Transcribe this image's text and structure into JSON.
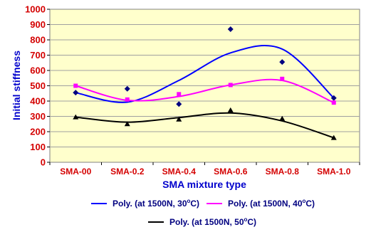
{
  "chart_data": {
    "type": "scatter",
    "xlabel": "SMA mixture type",
    "ylabel": "Initial stiffness",
    "categories": [
      "SMA-00",
      "SMA-0.2",
      "SMA-0.4",
      "SMA-0.6",
      "SMA-0.8",
      "SMA-1.0"
    ],
    "ylim": [
      0,
      1000
    ],
    "yticks": [
      0,
      100,
      200,
      300,
      400,
      500,
      600,
      700,
      800,
      900,
      1000
    ],
    "grid": true,
    "plot_background": "#ffffcc",
    "legend_position": "bottom",
    "series": [
      {
        "name": "Poly. (at 1500N, 30",
        "name_sup": "o",
        "name_tail": "C)",
        "color": "#0000ff",
        "marker": "diamond",
        "marker_color": "#000080",
        "values": [
          455,
          480,
          380,
          870,
          655,
          420
        ],
        "trend": [
          455,
          393,
          535,
          715,
          740,
          420
        ]
      },
      {
        "name": "Poly. (at 1500N, 40",
        "name_sup": "o",
        "name_tail": "C)",
        "color": "#ff00ff",
        "marker": "square",
        "marker_color": "#ff00ff",
        "values": [
          500,
          410,
          445,
          505,
          545,
          390
        ],
        "trend": [
          500,
          405,
          430,
          505,
          535,
          390
        ]
      },
      {
        "name": "Poly. (at 1500N, 50",
        "name_sup": "o",
        "name_tail": "C)",
        "color": "#000000",
        "marker": "triangle",
        "marker_color": "#000000",
        "values": [
          295,
          250,
          280,
          340,
          285,
          160
        ],
        "trend": [
          295,
          262,
          292,
          322,
          270,
          160
        ]
      }
    ]
  }
}
